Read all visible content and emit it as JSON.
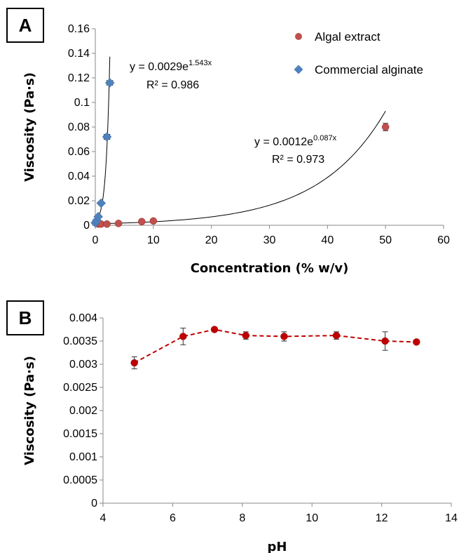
{
  "chart_data": [
    {
      "panel": "A",
      "type": "scatter",
      "xlabel": "Concentration (% w/v)",
      "ylabel": "Viscosity (Pa·s)",
      "xlim": [
        0,
        60
      ],
      "ylim": [
        0,
        0.16
      ],
      "xticks": [
        0,
        10,
        20,
        30,
        40,
        50,
        60
      ],
      "yticks": [
        0,
        0.02,
        0.04,
        0.06,
        0.08,
        0.1,
        0.12,
        0.14,
        0.16
      ],
      "xtick_labels": [
        "0",
        "10",
        "20",
        "30",
        "40",
        "50",
        "60"
      ],
      "ytick_labels": [
        "0",
        "0.02",
        "0.04",
        "0.06",
        "0.08",
        "0.1",
        "0.12",
        "0.14",
        "0.16"
      ],
      "grid": false,
      "legend_position": "top-right",
      "series": [
        {
          "name": "Algal extract",
          "marker": "circle",
          "color": "#c0504d",
          "x": [
            0.5,
            1,
            2,
            4,
            8,
            10,
            50
          ],
          "y": [
            0.001,
            0.001,
            0.001,
            0.0015,
            0.003,
            0.0035,
            0.08
          ],
          "error": [
            0,
            0,
            0,
            0,
            0,
            0,
            0.003
          ],
          "trendline": {
            "type": "exponential",
            "a": 0.0012,
            "b": 0.087,
            "x_range": [
              0,
              50
            ],
            "equation_main": "y = 0.0012e",
            "equation_exp": "0.087x",
            "r2_label": "R² = 0.973"
          }
        },
        {
          "name": "Commercial alginate",
          "marker": "diamond",
          "color": "#4f81bd",
          "x": [
            0,
            0.25,
            0.5,
            1,
            2,
            2.5
          ],
          "y": [
            0.002,
            0.004,
            0.007,
            0.018,
            0.072,
            0.116
          ],
          "error": [
            0,
            0,
            0,
            0,
            0.002,
            0
          ],
          "xerror": [
            0,
            0,
            0,
            0,
            0.5,
            0.5
          ],
          "trendline": {
            "type": "exponential",
            "a": 0.0029,
            "b": 1.543,
            "x_range": [
              0,
              2.5
            ],
            "equation_main": "y = 0.0029e",
            "equation_exp": "1.543x",
            "r2_label": "R² = 0.986"
          }
        }
      ]
    },
    {
      "panel": "B",
      "type": "line",
      "xlabel": "pH",
      "ylabel": "Viscosity (Pa·s)",
      "xlim": [
        4,
        14
      ],
      "ylim": [
        0,
        0.004
      ],
      "xticks": [
        4,
        6,
        8,
        10,
        12,
        14
      ],
      "yticks": [
        0,
        0.0005,
        0.001,
        0.0015,
        0.002,
        0.0025,
        0.003,
        0.0035,
        0.004
      ],
      "xtick_labels": [
        "4",
        "6",
        "8",
        "10",
        "12",
        "14"
      ],
      "ytick_labels": [
        "0",
        "0.0005",
        "0.001",
        "0.0015",
        "0.002",
        "0.0025",
        "0.003",
        "0.0035",
        "0.004"
      ],
      "grid": false,
      "series": [
        {
          "marker": "circle",
          "line_style": "dashed",
          "color": "#c00000",
          "x": [
            4.9,
            6.3,
            7.2,
            8.1,
            9.2,
            10.7,
            12.1,
            13.0
          ],
          "y": [
            0.00303,
            0.0036,
            0.00375,
            0.00362,
            0.0036,
            0.00362,
            0.0035,
            0.00348
          ],
          "error": [
            0.00013,
            0.00018,
            2e-05,
            8e-05,
            0.0001,
            8e-05,
            0.0002,
            2e-05
          ]
        }
      ]
    }
  ]
}
